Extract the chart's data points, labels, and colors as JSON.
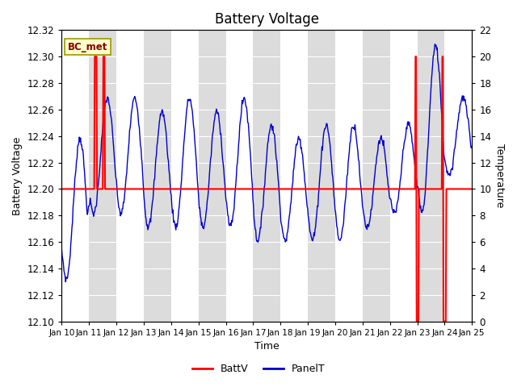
{
  "title": "Battery Voltage",
  "xlabel": "Time",
  "ylabel_left": "Battery Voltage",
  "ylabel_right": "Temperature",
  "ylim_left": [
    12.1,
    12.32
  ],
  "ylim_right": [
    0,
    22
  ],
  "yticks_left": [
    12.1,
    12.12,
    12.14,
    12.16,
    12.18,
    12.2,
    12.22,
    12.24,
    12.26,
    12.28,
    12.3,
    12.32
  ],
  "yticks_right": [
    0,
    2,
    4,
    6,
    8,
    10,
    12,
    14,
    16,
    18,
    20,
    22
  ],
  "xtick_labels": [
    "Jan 10",
    "Jan 11",
    "Jan 12",
    "Jan 13",
    "Jan 14",
    "Jan 15",
    "Jan 16",
    "Jan 17",
    "Jan 18",
    "Jan 19",
    "Jan 20",
    "Jan 21",
    "Jan 22",
    "Jan 23",
    "Jan 24",
    "Jan 25"
  ],
  "annotation_label": "BC_met",
  "legend_labels": [
    "BattV",
    "PanelT"
  ],
  "batt_color": "#ff0000",
  "panel_color": "#0000cd",
  "background_color": "#ffffff",
  "band_color": "#dcdcdc",
  "title_fontsize": 12,
  "label_fontsize": 9,
  "tick_fontsize": 8.5
}
